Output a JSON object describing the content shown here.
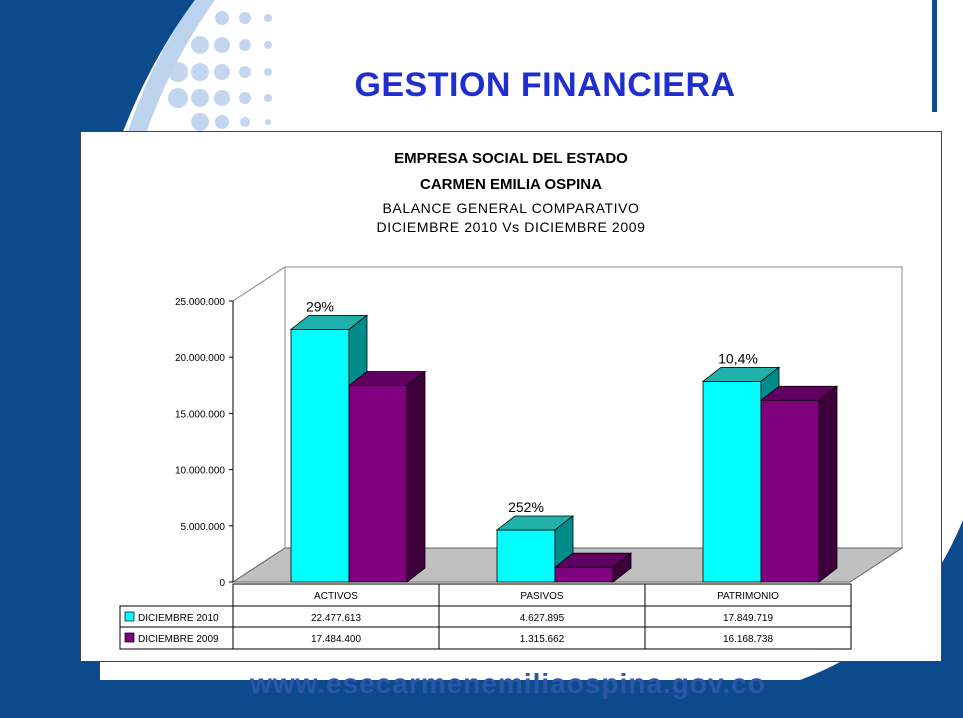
{
  "slide": {
    "title": "GESTION FINANCIERA",
    "footer_url": "www.esecarmenemiliaospina.gov.co"
  },
  "colors": {
    "background_blue": "#0d4a8c",
    "title_blue": "#1f2fcf",
    "series_2010": "#00ffff",
    "series_2009": "#800080",
    "floor": "#c0c0c0"
  },
  "chart_data": {
    "type": "bar",
    "title_lines": [
      "EMPRESA SOCIAL DEL ESTADO",
      "CARMEN EMILIA OSPINA"
    ],
    "subtitle_lines": [
      "BALANCE GENERAL COMPARATIVO",
      "DICIEMBRE 2010  Vs DICIEMBRE 2009"
    ],
    "categories": [
      "ACTIVOS",
      "PASIVOS",
      "PATRIMONIO"
    ],
    "series": [
      {
        "name": "DICIEMBRE 2010",
        "values": [
          22477613,
          4627895,
          17849719
        ],
        "display": [
          "22.477.613",
          "4.627.895",
          "17.849.719"
        ]
      },
      {
        "name": "DICIEMBRE 2009",
        "values": [
          17484400,
          1315662,
          16168738
        ],
        "display": [
          "17.484.400",
          "1.315.662",
          "16.168.738"
        ]
      }
    ],
    "annotations": [
      "29%",
      "252%",
      "10,4%"
    ],
    "yticks": [
      0,
      5000000,
      10000000,
      15000000,
      20000000,
      25000000
    ],
    "ytick_labels": [
      "0",
      "5.000.000",
      "10.000.000",
      "15.000.000",
      "20.000.000",
      "25.000.000"
    ],
    "ylim": [
      0,
      25000000
    ],
    "legend": "data-table"
  }
}
